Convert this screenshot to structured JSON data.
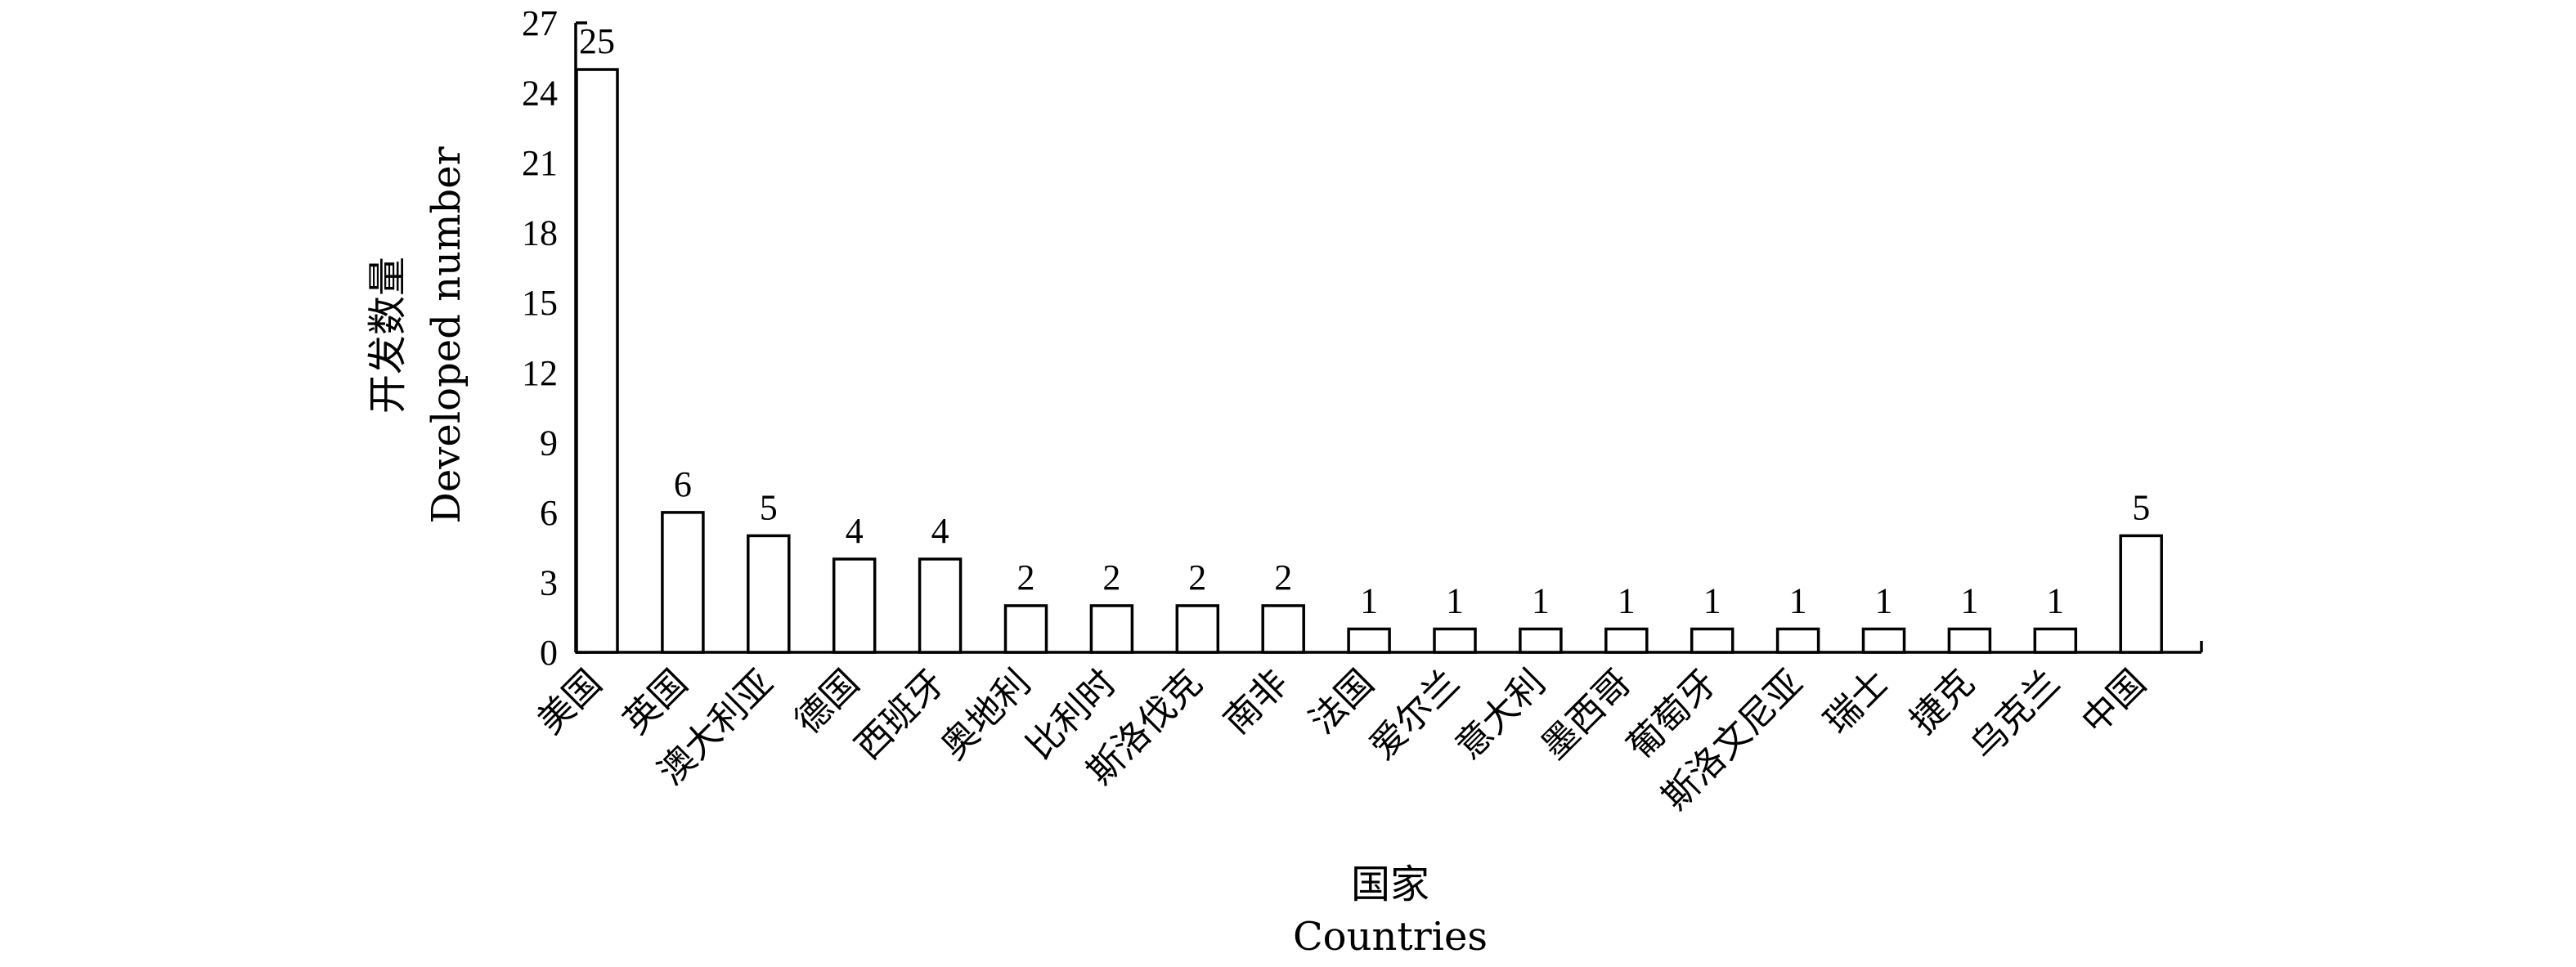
{
  "chart_data": {
    "type": "bar",
    "categories": [
      "美国",
      "英国",
      "澳大利亚",
      "德国",
      "西班牙",
      "奥地利",
      "比利时",
      "斯洛伐克",
      "南非",
      "法国",
      "爱尔兰",
      "意大利",
      "墨西哥",
      "葡萄牙",
      "斯洛文尼亚",
      "瑞士",
      "捷克",
      "乌克兰",
      "中国"
    ],
    "values": [
      25,
      6,
      5,
      4,
      4,
      2,
      2,
      2,
      2,
      1,
      1,
      1,
      1,
      1,
      1,
      1,
      1,
      1,
      5
    ],
    "ylim": [
      0,
      27
    ],
    "yticks": [
      0,
      3,
      6,
      9,
      12,
      15,
      18,
      21,
      24,
      27
    ],
    "xlabel": [
      "国家",
      "Countries"
    ],
    "ylabel": [
      "开发数量",
      "Developed number"
    ],
    "grid": false,
    "legend": "none"
  }
}
